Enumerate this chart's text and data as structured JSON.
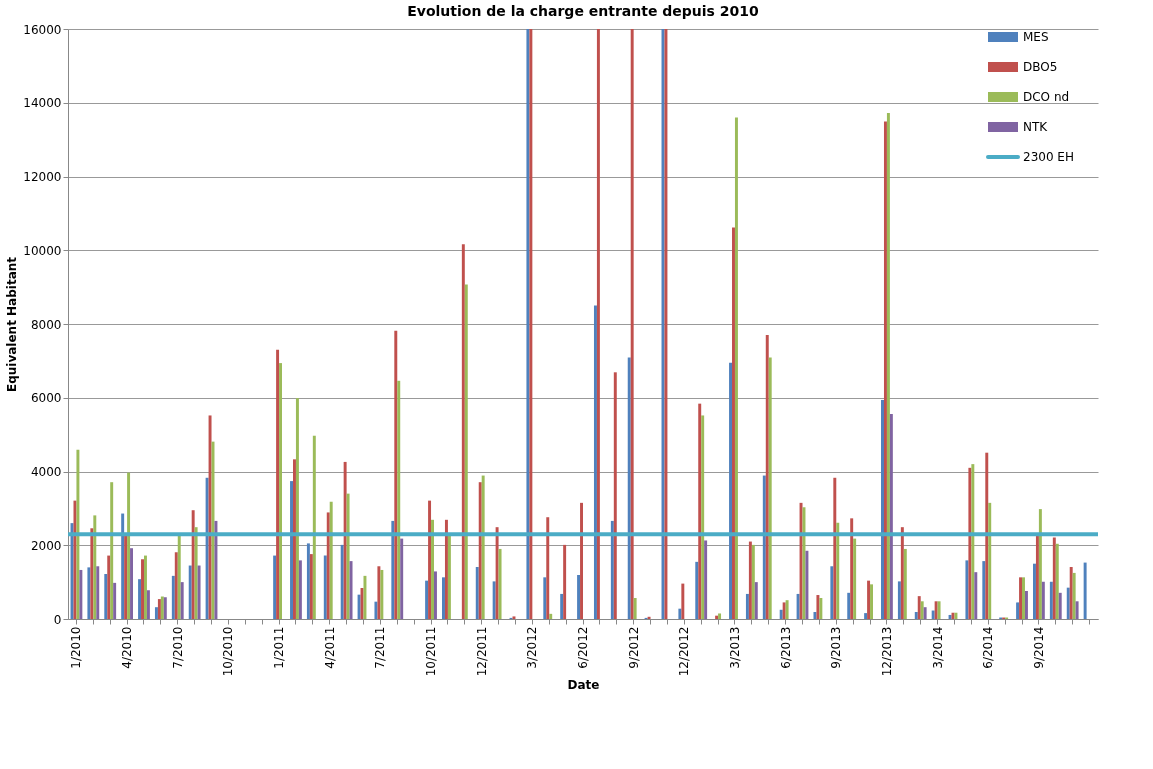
{
  "chart_data": {
    "type": "bar",
    "title": "Evolution de la charge entrante depuis 2010",
    "xlabel": "Date",
    "ylabel": "Equivalent  Habitant",
    "categories": [
      "1/2010",
      null,
      null,
      "4/2010",
      null,
      null,
      "7/2010",
      null,
      null,
      "10/2010",
      null,
      null,
      "1/2011",
      null,
      null,
      "4/2011",
      null,
      null,
      "7/2011",
      null,
      null,
      "10/2011",
      null,
      null,
      "12/2011",
      null,
      null,
      "3/2012",
      null,
      null,
      "6/2012",
      null,
      null,
      "9/2012",
      null,
      null,
      "12/2012",
      null,
      null,
      "3/2013",
      null,
      null,
      "6/2013",
      null,
      null,
      "9/2013",
      null,
      null,
      "12/2013",
      null,
      null,
      "3/2014",
      null,
      null,
      "6/2014",
      null,
      null,
      "9/2014",
      null,
      null,
      null
    ],
    "series": [
      {
        "name": "MES",
        "color": "#4f81bd",
        "values": [
          2600,
          1400,
          1220,
          2860,
          1080,
          320,
          1170,
          1450,
          3830,
          null,
          null,
          null,
          1720,
          3740,
          2050,
          1720,
          2010,
          660,
          470,
          2660,
          null,
          1040,
          1130,
          null,
          1410,
          1020,
          30,
          16000,
          1130,
          680,
          1190,
          8500,
          2660,
          7090,
          30,
          16000,
          280,
          1550,
          null,
          6950,
          680,
          3890,
          250,
          680,
          190,
          1430,
          710,
          160,
          5940,
          1020,
          190,
          230,
          110,
          1590,
          1570,
          40,
          450,
          1500,
          1010,
          850,
          1530
        ]
      },
      {
        "name": "DBO5",
        "color": "#c0504d",
        "values": [
          3210,
          2460,
          1720,
          2270,
          1620,
          540,
          1810,
          2950,
          5520,
          null,
          null,
          null,
          7300,
          4330,
          1760,
          2890,
          4260,
          840,
          1430,
          7820,
          null,
          3210,
          2690,
          10160,
          3710,
          2490,
          70,
          16000,
          2760,
          2010,
          3150,
          16000,
          6690,
          16000,
          60,
          16000,
          960,
          5840,
          90,
          10620,
          2100,
          7700,
          450,
          3150,
          650,
          3830,
          2730,
          1040,
          13490,
          2490,
          620,
          480,
          170,
          4100,
          4510,
          40,
          1130,
          2270,
          2210,
          1410,
          null
        ]
      },
      {
        "name": "DCO nd",
        "color": "#9bbb59",
        "values": [
          4590,
          2810,
          3710,
          3970,
          1720,
          610,
          2270,
          2490,
          4810,
          null,
          null,
          null,
          6940,
          5990,
          4970,
          3180,
          3400,
          1170,
          1330,
          6460,
          null,
          2690,
          2270,
          9070,
          3890,
          1900,
          null,
          null,
          140,
          null,
          null,
          null,
          null,
          570,
          null,
          null,
          null,
          5520,
          150,
          13600,
          2010,
          7090,
          510,
          3030,
          570,
          2610,
          2180,
          940,
          13720,
          1900,
          480,
          480,
          170,
          4200,
          3150,
          40,
          1130,
          2980,
          2040,
          1250,
          null
        ]
      },
      {
        "name": "NTK",
        "color": "#8064a2",
        "values": [
          1330,
          1430,
          980,
          1920,
          780,
          590,
          1000,
          1450,
          2660,
          null,
          null,
          null,
          null,
          1590,
          null,
          null,
          1570,
          null,
          null,
          2180,
          null,
          1290,
          null,
          null,
          null,
          null,
          null,
          null,
          null,
          null,
          null,
          null,
          null,
          null,
          null,
          null,
          null,
          2130,
          null,
          null,
          1000,
          null,
          null,
          1850,
          null,
          null,
          null,
          null,
          5560,
          null,
          320,
          null,
          null,
          1270,
          null,
          null,
          760,
          1010,
          710,
          480,
          null
        ]
      }
    ],
    "ref_lines": [
      {
        "axis": "y",
        "value": 2300,
        "label": "2300 EH",
        "color": "#4bacc6"
      }
    ],
    "ylim": [
      0,
      16000
    ],
    "yticks": [
      0,
      2000,
      4000,
      6000,
      8000,
      10000,
      12000,
      14000,
      16000
    ],
    "grid": "y",
    "legend": "top right"
  }
}
